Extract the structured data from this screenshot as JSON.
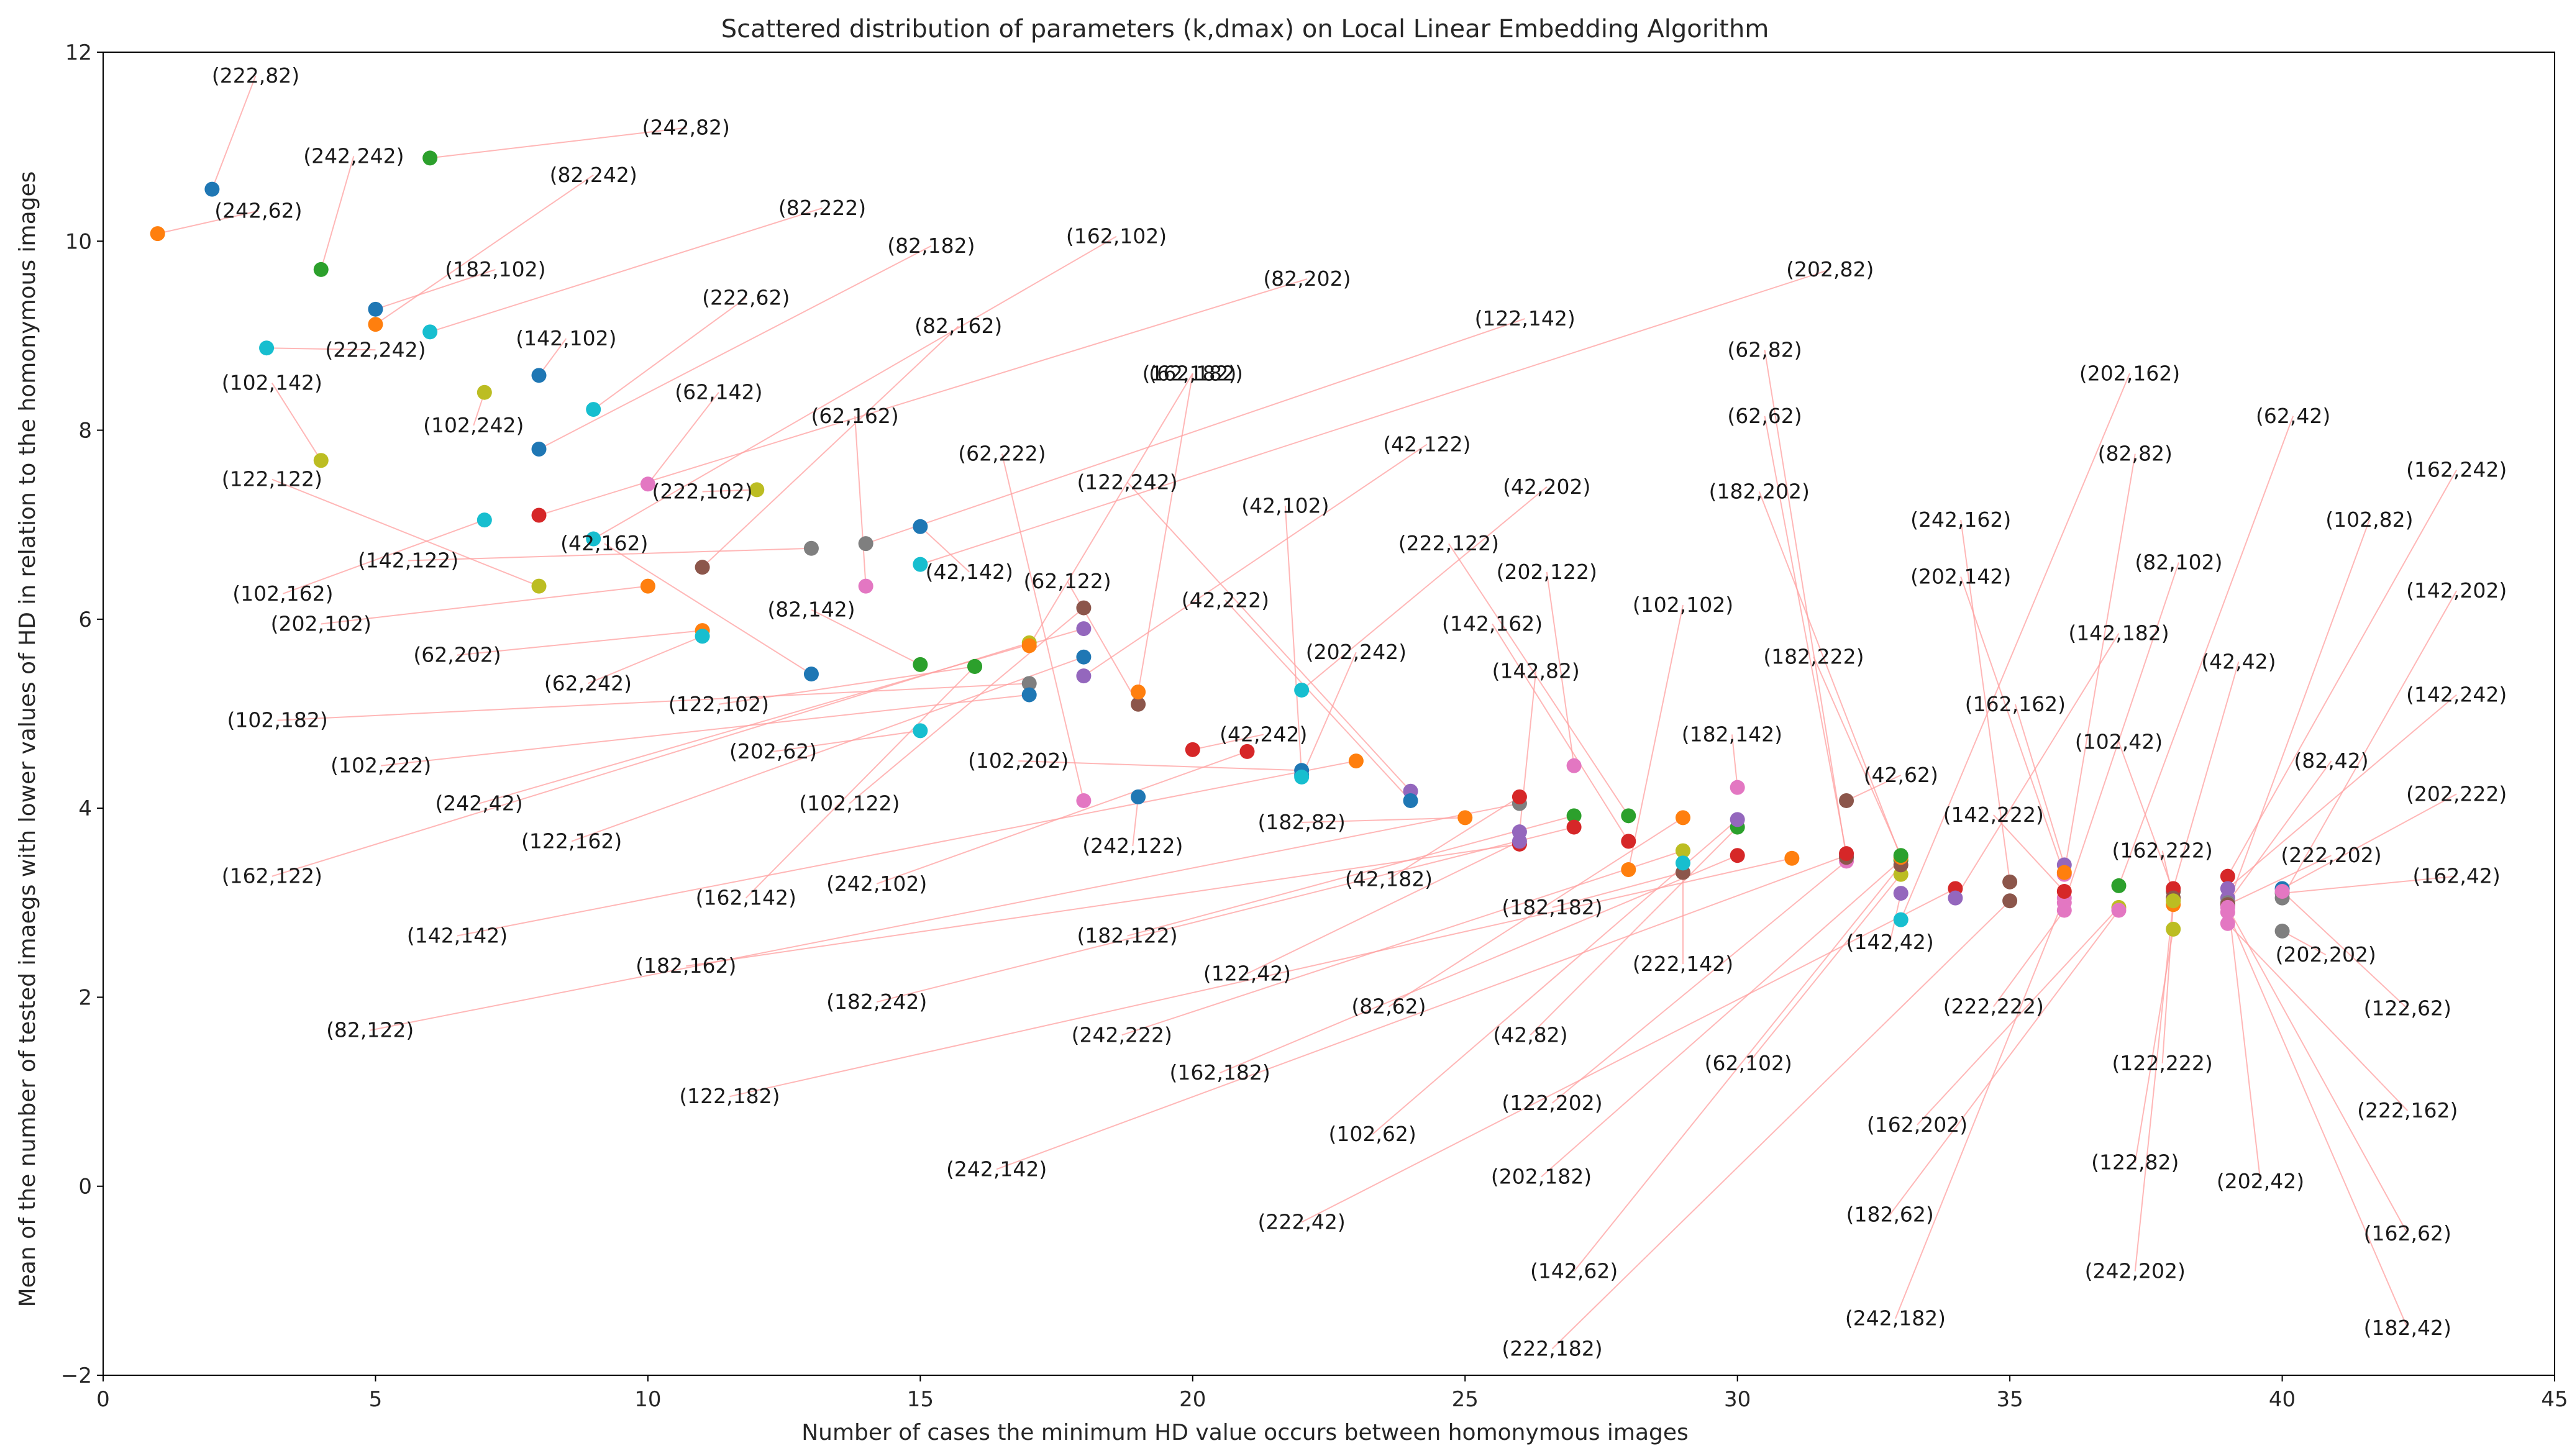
{
  "chart_data": {
    "type": "scatter",
    "title": "Scattered distribution of parameters (k,dmax) on Local Linear Embedding Algorithm",
    "xlabel": "Number of cases the minimum HD value occurs between homonymous images",
    "ylabel": "Mean of the number of tested imaegs with lower values of HD in relation to the homonymous images",
    "xlim": [
      0,
      45
    ],
    "ylim": [
      -2,
      12
    ],
    "xticks": [
      "0",
      "5",
      "10",
      "15",
      "20",
      "25",
      "30",
      "35",
      "40",
      "45"
    ],
    "yticks": [
      "−2",
      "0",
      "2",
      "4",
      "6",
      "8",
      "10",
      "12"
    ],
    "grid": false,
    "legend": "none",
    "palette": [
      "#1f77b4",
      "#ff7f0e",
      "#2ca02c",
      "#d62728",
      "#9467bd",
      "#8c564b",
      "#e377c2",
      "#7f7f7f",
      "#bcbd22",
      "#17becf"
    ],
    "points": [
      {
        "label": "(222,82)",
        "x": 2,
        "y": 10.55,
        "c": 0,
        "lx": 2.8,
        "ly": 11.75
      },
      {
        "label": "(242,62)",
        "x": 1,
        "y": 10.08,
        "c": 1,
        "lx": 2.85,
        "ly": 10.32
      },
      {
        "label": "(242,242)",
        "x": 4,
        "y": 9.7,
        "c": 2,
        "lx": 4.6,
        "ly": 10.9
      },
      {
        "label": "(242,82)",
        "x": 6,
        "y": 10.88,
        "c": 2,
        "lx": 10.7,
        "ly": 11.2
      },
      {
        "label": "(182,102)",
        "x": 5,
        "y": 9.28,
        "c": 0,
        "lx": 7.2,
        "ly": 9.7
      },
      {
        "label": "(82,242)",
        "x": 5,
        "y": 9.12,
        "c": 1,
        "lx": 9.0,
        "ly": 10.7
      },
      {
        "label": "(82,222)",
        "x": 6,
        "y": 9.04,
        "c": 9,
        "lx": 13.2,
        "ly": 10.35
      },
      {
        "label": "(222,242)",
        "x": 3,
        "y": 8.87,
        "c": 9,
        "lx": 5.0,
        "ly": 8.85
      },
      {
        "label": "(142,102)",
        "x": 8,
        "y": 8.58,
        "c": 0,
        "lx": 8.5,
        "ly": 8.97
      },
      {
        "label": "(102,142)",
        "x": 4,
        "y": 7.68,
        "c": 8,
        "lx": 3.1,
        "ly": 8.5
      },
      {
        "label": "(102,242)",
        "x": 7,
        "y": 8.4,
        "c": 8,
        "lx": 6.8,
        "ly": 8.05
      },
      {
        "label": "(222,62)",
        "x": 9,
        "y": 8.22,
        "c": 9,
        "lx": 11.8,
        "ly": 9.4
      },
      {
        "label": "(82,182)",
        "x": 8,
        "y": 7.8,
        "c": 0,
        "lx": 15.2,
        "ly": 9.95
      },
      {
        "label": "(162,102)",
        "x": 9,
        "y": 6.85,
        "c": 9,
        "lx": 18.6,
        "ly": 10.05
      },
      {
        "label": "(122,122)",
        "x": 8,
        "y": 6.35,
        "c": 8,
        "lx": 3.1,
        "ly": 7.48
      },
      {
        "label": "(62,142)",
        "x": 10,
        "y": 7.43,
        "c": 6,
        "lx": 11.3,
        "ly": 8.4
      },
      {
        "label": "(82,202)",
        "x": 8,
        "y": 7.1,
        "c": 3,
        "lx": 22.1,
        "ly": 9.6
      },
      {
        "label": "(82,162)",
        "x": 11,
        "y": 6.55,
        "c": 5,
        "lx": 15.7,
        "ly": 9.1
      },
      {
        "label": "(122,142)",
        "x": 14,
        "y": 6.8,
        "c": 7,
        "lx": 26.1,
        "ly": 9.18
      },
      {
        "label": "(202,82)",
        "x": 15,
        "y": 6.58,
        "c": 9,
        "lx": 31.7,
        "ly": 9.7
      },
      {
        "label": "(62,162)",
        "x": 14,
        "y": 6.35,
        "c": 6,
        "lx": 13.8,
        "ly": 8.15
      },
      {
        "label": "(222,102)",
        "x": 12,
        "y": 7.37,
        "c": 8,
        "lx": 11.0,
        "ly": 7.35
      },
      {
        "label": "(142,122)",
        "x": 13,
        "y": 6.75,
        "c": 7,
        "lx": 5.6,
        "ly": 6.62
      },
      {
        "label": "(42,162)",
        "x": 13,
        "y": 5.42,
        "c": 0,
        "lx": 9.2,
        "ly": 6.8
      },
      {
        "label": "(102,162)",
        "x": 7,
        "y": 7.05,
        "c": 9,
        "lx": 3.3,
        "ly": 6.27
      },
      {
        "label": "(42,142)",
        "x": 15,
        "y": 6.98,
        "c": 0,
        "lx": 15.9,
        "ly": 6.5
      },
      {
        "label": "(202,102)",
        "x": 10,
        "y": 6.35,
        "c": 1,
        "lx": 4.0,
        "ly": 5.95
      },
      {
        "label": "(82,142)",
        "x": 15,
        "y": 5.52,
        "c": 2,
        "lx": 13.0,
        "ly": 6.1
      },
      {
        "label": "(62,202)",
        "x": 11,
        "y": 5.88,
        "c": 1,
        "lx": 6.5,
        "ly": 5.62
      },
      {
        "label": "(62,242)",
        "x": 11,
        "y": 5.82,
        "c": 9,
        "lx": 8.9,
        "ly": 5.32
      },
      {
        "label": "(122,102)",
        "x": 16,
        "y": 5.5,
        "c": 2,
        "lx": 11.3,
        "ly": 5.1
      },
      {
        "label": "(102,182)",
        "x": 17,
        "y": 5.32,
        "c": 7,
        "lx": 3.2,
        "ly": 4.93
      },
      {
        "label": "(102,222)",
        "x": 17,
        "y": 5.2,
        "c": 0,
        "lx": 5.1,
        "ly": 4.45
      },
      {
        "label": "(202,62)",
        "x": 15,
        "y": 4.82,
        "c": 9,
        "lx": 12.3,
        "ly": 4.6
      },
      {
        "label": "(242,42)",
        "x": 18,
        "y": 5.9,
        "c": 4,
        "lx": 6.9,
        "ly": 4.05
      },
      {
        "label": "(102,122)",
        "x": 18,
        "y": 6.12,
        "c": 5,
        "lx": 13.7,
        "ly": 4.05
      },
      {
        "label": "(122,162)",
        "x": 18,
        "y": 5.6,
        "c": 0,
        "lx": 8.6,
        "ly": 3.65
      },
      {
        "label": "(162,122)",
        "x": 17,
        "y": 5.75,
        "c": 8,
        "lx": 3.1,
        "ly": 3.28
      },
      {
        "label": "(102,202)",
        "x": 22,
        "y": 4.4,
        "c": 0,
        "lx": 16.8,
        "ly": 4.5
      },
      {
        "label": "(62,122)",
        "x": 19,
        "y": 5.1,
        "c": 5,
        "lx": 17.7,
        "ly": 6.4
      },
      {
        "label": "(62,222)",
        "x": 18,
        "y": 4.08,
        "c": 6,
        "lx": 16.5,
        "ly": 7.75
      },
      {
        "label": "(62,182)",
        "x": 17,
        "y": 5.72,
        "c": 1,
        "lx": 20.0,
        "ly": 8.6
      },
      {
        "label": "(162,182)",
        "x": 19,
        "y": 5.23,
        "c": 1,
        "lx": 20.0,
        "ly": 8.6
      },
      {
        "label": "(122,242)",
        "x": 24,
        "y": 4.18,
        "c": 4,
        "lx": 18.8,
        "ly": 7.45
      },
      {
        "label": "(42,102)",
        "x": 22,
        "y": 4.35,
        "c": 0,
        "lx": 21.7,
        "ly": 7.2
      },
      {
        "label": "(42,122)",
        "x": 18,
        "y": 5.4,
        "c": 4,
        "lx": 24.3,
        "ly": 7.85
      },
      {
        "label": "(42,202)",
        "x": 22,
        "y": 5.25,
        "c": 9,
        "lx": 26.5,
        "ly": 7.4
      },
      {
        "label": "(42,222)",
        "x": 24,
        "y": 4.08,
        "c": 0,
        "lx": 20.6,
        "ly": 6.2
      },
      {
        "label": "(162,142)",
        "x": 16,
        "y": 5.5,
        "c": 2,
        "lx": 11.8,
        "ly": 3.05
      },
      {
        "label": "(242,102)",
        "x": 21,
        "y": 4.6,
        "c": 3,
        "lx": 14.2,
        "ly": 3.2
      },
      {
        "label": "(242,122)",
        "x": 19,
        "y": 4.12,
        "c": 0,
        "lx": 18.9,
        "ly": 3.6
      },
      {
        "label": "(142,142)",
        "x": 23,
        "y": 4.5,
        "c": 1,
        "lx": 6.5,
        "ly": 2.65
      },
      {
        "label": "(42,242)",
        "x": 20,
        "y": 4.62,
        "c": 3,
        "lx": 21.3,
        "ly": 4.78
      },
      {
        "label": "(202,242)",
        "x": 22,
        "y": 4.33,
        "c": 9,
        "lx": 23.0,
        "ly": 5.65
      },
      {
        "label": "(182,82)",
        "x": 25,
        "y": 3.9,
        "c": 1,
        "lx": 22.0,
        "ly": 3.85
      },
      {
        "label": "(182,162)",
        "x": 26,
        "y": 3.62,
        "c": 3,
        "lx": 10.7,
        "ly": 2.33
      },
      {
        "label": "(182,122)",
        "x": 27,
        "y": 3.92,
        "c": 2,
        "lx": 18.8,
        "ly": 2.65
      },
      {
        "label": "(82,122)",
        "x": 26,
        "y": 4.05,
        "c": 7,
        "lx": 4.9,
        "ly": 1.65
      },
      {
        "label": "(42,182)",
        "x": 26,
        "y": 4.12,
        "c": 3,
        "lx": 23.6,
        "ly": 3.25
      },
      {
        "label": "(122,42)",
        "x": 26,
        "y": 3.65,
        "c": 4,
        "lx": 21.0,
        "ly": 2.25
      },
      {
        "label": "(182,242)",
        "x": 27,
        "y": 3.8,
        "c": 3,
        "lx": 14.2,
        "ly": 1.95
      },
      {
        "label": "(222,122)",
        "x": 28,
        "y": 3.92,
        "c": 2,
        "lx": 24.7,
        "ly": 6.8
      },
      {
        "label": "(202,122)",
        "x": 27,
        "y": 4.45,
        "c": 6,
        "lx": 26.5,
        "ly": 6.5
      },
      {
        "label": "(142,162)",
        "x": 28,
        "y": 3.65,
        "c": 3,
        "lx": 25.5,
        "ly": 5.95
      },
      {
        "label": "(142,82)",
        "x": 26,
        "y": 3.75,
        "c": 4,
        "lx": 26.3,
        "ly": 5.45
      },
      {
        "label": "(102,102)",
        "x": 28,
        "y": 3.35,
        "c": 1,
        "lx": 29.0,
        "ly": 6.15
      },
      {
        "label": "(182,182)",
        "x": 29,
        "y": 3.32,
        "c": 5,
        "lx": 26.6,
        "ly": 2.95
      },
      {
        "label": "(242,222)",
        "x": 29,
        "y": 3.55,
        "c": 8,
        "lx": 18.7,
        "ly": 1.6
      },
      {
        "label": "(82,62)",
        "x": 29,
        "y": 3.9,
        "c": 1,
        "lx": 23.6,
        "ly": 1.9
      },
      {
        "label": "(222,142)",
        "x": 29,
        "y": 3.42,
        "c": 9,
        "lx": 29.0,
        "ly": 2.35
      },
      {
        "label": "(122,182)",
        "x": 31,
        "y": 3.47,
        "c": 1,
        "lx": 11.5,
        "ly": 0.95
      },
      {
        "label": "(162,182)",
        "x": 30,
        "y": 3.5,
        "c": 3,
        "lx": 20.5,
        "ly": 1.2
      },
      {
        "label": "(42,82)",
        "x": 30,
        "y": 3.8,
        "c": 2,
        "lx": 26.2,
        "ly": 1.6
      },
      {
        "label": "(182,142)",
        "x": 30,
        "y": 4.22,
        "c": 6,
        "lx": 29.9,
        "ly": 4.78
      },
      {
        "label": "(102,62)",
        "x": 30,
        "y": 3.88,
        "c": 4,
        "lx": 23.3,
        "ly": 0.55
      },
      {
        "label": "(242,142)",
        "x": 32,
        "y": 3.5,
        "c": 4,
        "lx": 16.4,
        "ly": 0.18
      },
      {
        "label": "(122,202)",
        "x": 32,
        "y": 3.44,
        "c": 6,
        "lx": 26.6,
        "ly": 0.88
      },
      {
        "label": "(62,102)",
        "x": 33,
        "y": 3.3,
        "c": 8,
        "lx": 30.2,
        "ly": 1.3
      },
      {
        "label": "(202,182)",
        "x": 33,
        "y": 3.45,
        "c": 2,
        "lx": 26.4,
        "ly": 0.1
      },
      {
        "label": "(222,42)",
        "x": 34,
        "y": 3.15,
        "c": 3,
        "lx": 22.0,
        "ly": -0.38
      },
      {
        "label": "(142,62)",
        "x": 33,
        "y": 3.4,
        "c": 5,
        "lx": 27.0,
        "ly": -0.9
      },
      {
        "label": "(222,182)",
        "x": 35,
        "y": 3.02,
        "c": 5,
        "lx": 26.6,
        "ly": -1.72
      },
      {
        "label": "(242,182)",
        "x": 36,
        "y": 3.05,
        "c": 6,
        "lx": 32.9,
        "ly": -1.4
      },
      {
        "label": "(62,82)",
        "x": 32,
        "y": 3.48,
        "c": 5,
        "lx": 30.5,
        "ly": 8.85
      },
      {
        "label": "(62,62)",
        "x": 32,
        "y": 3.52,
        "c": 3,
        "lx": 30.5,
        "ly": 8.15
      },
      {
        "label": "(182,202)",
        "x": 33,
        "y": 3.48,
        "c": 1,
        "lx": 30.4,
        "ly": 7.35
      },
      {
        "label": "(42,62)",
        "x": 32,
        "y": 4.08,
        "c": 5,
        "lx": 33.0,
        "ly": 4.35
      },
      {
        "label": "(142,42)",
        "x": 33,
        "y": 3.1,
        "c": 4,
        "lx": 32.8,
        "ly": 2.58
      },
      {
        "label": "(182,222)",
        "x": 33,
        "y": 3.5,
        "c": 2,
        "lx": 31.4,
        "ly": 5.6
      },
      {
        "label": "(162,162)",
        "x": 36,
        "y": 3.4,
        "c": 4,
        "lx": 35.1,
        "ly": 5.1
      },
      {
        "label": "(242,162)",
        "x": 35,
        "y": 3.22,
        "c": 5,
        "lx": 34.1,
        "ly": 7.05
      },
      {
        "label": "(202,142)",
        "x": 36,
        "y": 3.3,
        "c": 6,
        "lx": 34.1,
        "ly": 6.45
      },
      {
        "label": "(82,82)",
        "x": 36,
        "y": 3.32,
        "c": 1,
        "lx": 37.3,
        "ly": 7.75
      },
      {
        "label": "(202,162)",
        "x": 33,
        "y": 2.82,
        "c": 9,
        "lx": 37.2,
        "ly": 8.6
      },
      {
        "label": "(82,102)",
        "x": 36,
        "y": 3.0,
        "c": 6,
        "lx": 38.1,
        "ly": 6.6
      },
      {
        "label": "(62,42)",
        "x": 37,
        "y": 3.18,
        "c": 2,
        "lx": 40.2,
        "ly": 8.15
      },
      {
        "label": "(142,182)",
        "x": 34,
        "y": 3.05,
        "c": 4,
        "lx": 37.0,
        "ly": 5.85
      },
      {
        "label": "(102,42)",
        "x": 38,
        "y": 3.12,
        "c": 5,
        "lx": 37.0,
        "ly": 4.7
      },
      {
        "label": "(142,222)",
        "x": 36,
        "y": 3.12,
        "c": 3,
        "lx": 34.7,
        "ly": 3.93
      },
      {
        "label": "(42,42)",
        "x": 38,
        "y": 3.15,
        "c": 3,
        "lx": 39.2,
        "ly": 5.55
      },
      {
        "label": "(162,222)",
        "x": 38,
        "y": 3.05,
        "c": 5,
        "lx": 37.8,
        "ly": 3.55
      },
      {
        "label": "(222,222)",
        "x": 36,
        "y": 2.92,
        "c": 6,
        "lx": 34.7,
        "ly": 1.9
      },
      {
        "label": "(122,222)",
        "x": 38,
        "y": 2.98,
        "c": 1,
        "lx": 37.8,
        "ly": 1.3
      },
      {
        "label": "(162,202)",
        "x": 37,
        "y": 2.95,
        "c": 8,
        "lx": 33.3,
        "ly": 0.65
      },
      {
        "label": "(122,82)",
        "x": 38,
        "y": 2.72,
        "c": 8,
        "lx": 37.3,
        "ly": 0.25
      },
      {
        "label": "(182,62)",
        "x": 37,
        "y": 2.92,
        "c": 6,
        "lx": 32.8,
        "ly": -0.3
      },
      {
        "label": "(242,202)",
        "x": 38,
        "y": 3.02,
        "c": 8,
        "lx": 37.3,
        "ly": -0.9
      },
      {
        "label": "(202,42)",
        "x": 39,
        "y": 3.05,
        "c": 4,
        "lx": 39.6,
        "ly": 0.05
      },
      {
        "label": "(162,242)",
        "x": 39,
        "y": 3.28,
        "c": 3,
        "lx": 43.2,
        "ly": 7.58
      },
      {
        "label": "(102,82)",
        "x": 39,
        "y": 2.97,
        "c": 5,
        "lx": 41.6,
        "ly": 7.05
      },
      {
        "label": "(142,202)",
        "x": 40,
        "y": 3.05,
        "c": 7,
        "lx": 43.2,
        "ly": 6.3
      },
      {
        "label": "(142,242)",
        "x": 39,
        "y": 3.15,
        "c": 4,
        "lx": 43.2,
        "ly": 5.2
      },
      {
        "label": "(82,42)",
        "x": 39,
        "y": 3.0,
        "c": 7,
        "lx": 40.9,
        "ly": 4.5
      },
      {
        "label": "(202,222)",
        "x": 40,
        "y": 3.15,
        "c": 0,
        "lx": 43.2,
        "ly": 4.15
      },
      {
        "label": "(222,202)",
        "x": 39,
        "y": 2.98,
        "c": 5,
        "lx": 40.9,
        "ly": 3.5
      },
      {
        "label": "(162,42)",
        "x": 40,
        "y": 3.1,
        "c": 7,
        "lx": 43.2,
        "ly": 3.28
      },
      {
        "label": "(202,202)",
        "x": 40,
        "y": 2.7,
        "c": 7,
        "lx": 40.8,
        "ly": 2.45
      },
      {
        "label": "(122,62)",
        "x": 40,
        "y": 3.12,
        "c": 6,
        "lx": 42.3,
        "ly": 1.88
      },
      {
        "label": "(222,162)",
        "x": 39,
        "y": 2.78,
        "c": 6,
        "lx": 42.3,
        "ly": 0.8
      },
      {
        "label": "(162,62)",
        "x": 39,
        "y": 2.95,
        "c": 6,
        "lx": 42.3,
        "ly": -0.5
      },
      {
        "label": "(182,42)",
        "x": 39,
        "y": 2.9,
        "c": 6,
        "lx": 42.3,
        "ly": -1.5
      }
    ]
  }
}
